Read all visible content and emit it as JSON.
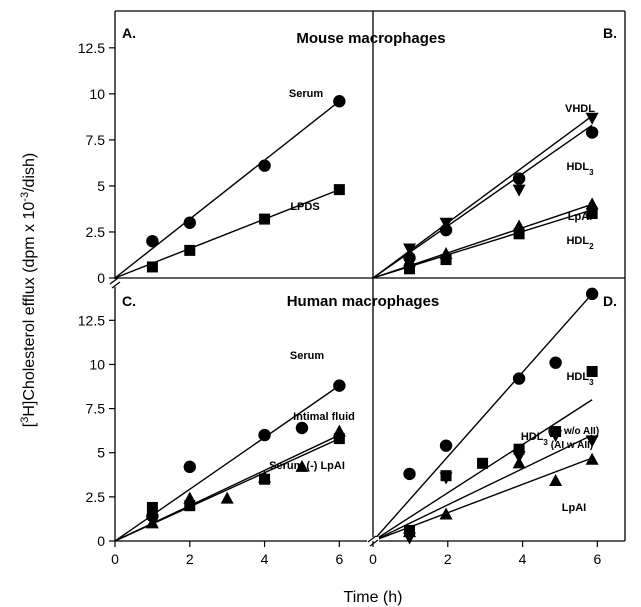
{
  "figure": {
    "ylabel_pre": "[",
    "ylabel_sup": "3",
    "ylabel_mid": "H]Cholesterol efflux (dpm x 10",
    "ylabel_exp": "-3",
    "ylabel_post": "/dish)",
    "xlabel": "Time (h)",
    "top_title": "Mouse macrophages",
    "bottom_title": "Human macrophages",
    "x_ticks": [
      "0",
      "2",
      "4",
      "6"
    ],
    "y_ticks": [
      "0",
      "2.5",
      "5",
      "7.5",
      "10",
      "12.5"
    ]
  },
  "chart_data": [
    {
      "panel": "A.",
      "type": "scatter",
      "xlim": [
        0,
        6.9
      ],
      "ylim": [
        0,
        14.5
      ],
      "series": [
        {
          "name": "Serum",
          "marker": "circle",
          "points": [
            [
              1,
              2.0
            ],
            [
              2,
              3.0
            ],
            [
              4,
              6.1
            ],
            [
              6,
              9.6
            ]
          ],
          "line": [
            [
              0,
              0
            ],
            [
              6,
              9.6
            ]
          ]
        },
        {
          "name": "LPDS",
          "marker": "square",
          "points": [
            [
              1,
              0.6
            ],
            [
              2,
              1.5
            ],
            [
              4,
              3.2
            ],
            [
              6,
              4.8
            ]
          ],
          "line": [
            [
              0,
              0
            ],
            [
              2,
              1.6
            ],
            [
              4,
              3.2
            ],
            [
              6,
              4.8
            ]
          ]
        }
      ]
    },
    {
      "panel": "B.",
      "type": "scatter",
      "xlim": [
        0,
        6.9
      ],
      "ylim": [
        0,
        14.5
      ],
      "series": [
        {
          "name": "VHDL",
          "marker": "triangle-down",
          "points": [
            [
              1,
              1.6
            ],
            [
              2,
              3.0
            ],
            [
              4,
              4.8
            ],
            [
              6,
              8.7
            ]
          ],
          "line": [
            [
              0,
              0
            ],
            [
              6,
              8.8
            ]
          ]
        },
        {
          "name": "HDL",
          "sub": "3",
          "marker": "circle",
          "points": [
            [
              1,
              1.1
            ],
            [
              2,
              2.6
            ],
            [
              4,
              5.4
            ],
            [
              6,
              7.9
            ]
          ],
          "line": [
            [
              0,
              0
            ],
            [
              6,
              8.3
            ]
          ]
        },
        {
          "name": "LpAI",
          "marker": "triangle",
          "points": [
            [
              1,
              0.9
            ],
            [
              2,
              1.3
            ],
            [
              4,
              2.8
            ],
            [
              6,
              4.0
            ]
          ],
          "line": [
            [
              0,
              0
            ],
            [
              6,
              4.0
            ]
          ]
        },
        {
          "name": "HDL",
          "sub": "2",
          "marker": "square",
          "points": [
            [
              1,
              0.5
            ],
            [
              2,
              1.0
            ],
            [
              4,
              2.4
            ],
            [
              6,
              3.5
            ]
          ],
          "line": [
            [
              0,
              0
            ],
            [
              6,
              3.7
            ]
          ]
        }
      ]
    },
    {
      "panel": "C.",
      "type": "scatter",
      "xlim": [
        0,
        6.9
      ],
      "ylim": [
        0,
        14.5
      ],
      "series": [
        {
          "name": "Serum",
          "marker": "circle",
          "points": [
            [
              1,
              1.4
            ],
            [
              2,
              4.2
            ],
            [
              4,
              6.0
            ],
            [
              5,
              6.4
            ],
            [
              6,
              8.8
            ]
          ],
          "line": [
            [
              0,
              0
            ],
            [
              6,
              8.8
            ]
          ]
        },
        {
          "name": "Intimal fluid",
          "marker": "square",
          "points": [
            [
              1,
              1.9
            ],
            [
              2,
              2.0
            ],
            [
              4,
              3.5
            ],
            [
              6,
              5.8
            ]
          ],
          "line": [
            [
              0,
              0
            ],
            [
              6,
              5.8
            ]
          ]
        },
        {
          "name": "Serum (-) LpAI",
          "marker": "triangle",
          "points": [
            [
              1,
              1.0
            ],
            [
              2,
              2.4
            ],
            [
              3,
              2.4
            ],
            [
              4,
              3.6
            ],
            [
              5,
              4.2
            ],
            [
              6,
              6.2
            ]
          ],
          "line": [
            [
              0,
              0
            ],
            [
              6,
              6.0
            ]
          ]
        }
      ]
    },
    {
      "panel": "D.",
      "type": "scatter",
      "xlim": [
        0,
        6.9
      ],
      "ylim": [
        0,
        14.5
      ],
      "series": [
        {
          "name": "HDL",
          "sub": "3",
          "marker": "circle",
          "points": [
            [
              1,
              3.8
            ],
            [
              2,
              5.4
            ],
            [
              4,
              9.2
            ],
            [
              5,
              10.1
            ],
            [
              6,
              14.0
            ]
          ],
          "line": [
            [
              0,
              0
            ],
            [
              6,
              14.0
            ]
          ]
        },
        {
          "name": "HDL",
          "sub": "3",
          "suffix": "(AI w/o AII)",
          "marker": "square",
          "points": [
            [
              1,
              0.6
            ],
            [
              2,
              3.7
            ],
            [
              3,
              4.4
            ],
            [
              4,
              5.2
            ],
            [
              5,
              6.2
            ],
            [
              6,
              9.6
            ]
          ],
          "line": [
            [
              0,
              0
            ],
            [
              6,
              8.0
            ]
          ]
        },
        {
          "name": "",
          "suffix": "(AI w AII)",
          "marker": "triangle-down",
          "points": [
            [
              1,
              0.2
            ],
            [
              2,
              3.6
            ],
            [
              4,
              4.8
            ],
            [
              5,
              6.0
            ],
            [
              6,
              5.7
            ]
          ],
          "line": [
            [
              0,
              0
            ],
            [
              6,
              6.0
            ]
          ]
        },
        {
          "name": "LpAI",
          "marker": "triangle",
          "points": [
            [
              1,
              0.5
            ],
            [
              2,
              1.5
            ],
            [
              4,
              4.4
            ],
            [
              5,
              3.4
            ],
            [
              6,
              4.6
            ]
          ],
          "line": [
            [
              0,
              0
            ],
            [
              6,
              4.7
            ]
          ]
        }
      ]
    }
  ]
}
